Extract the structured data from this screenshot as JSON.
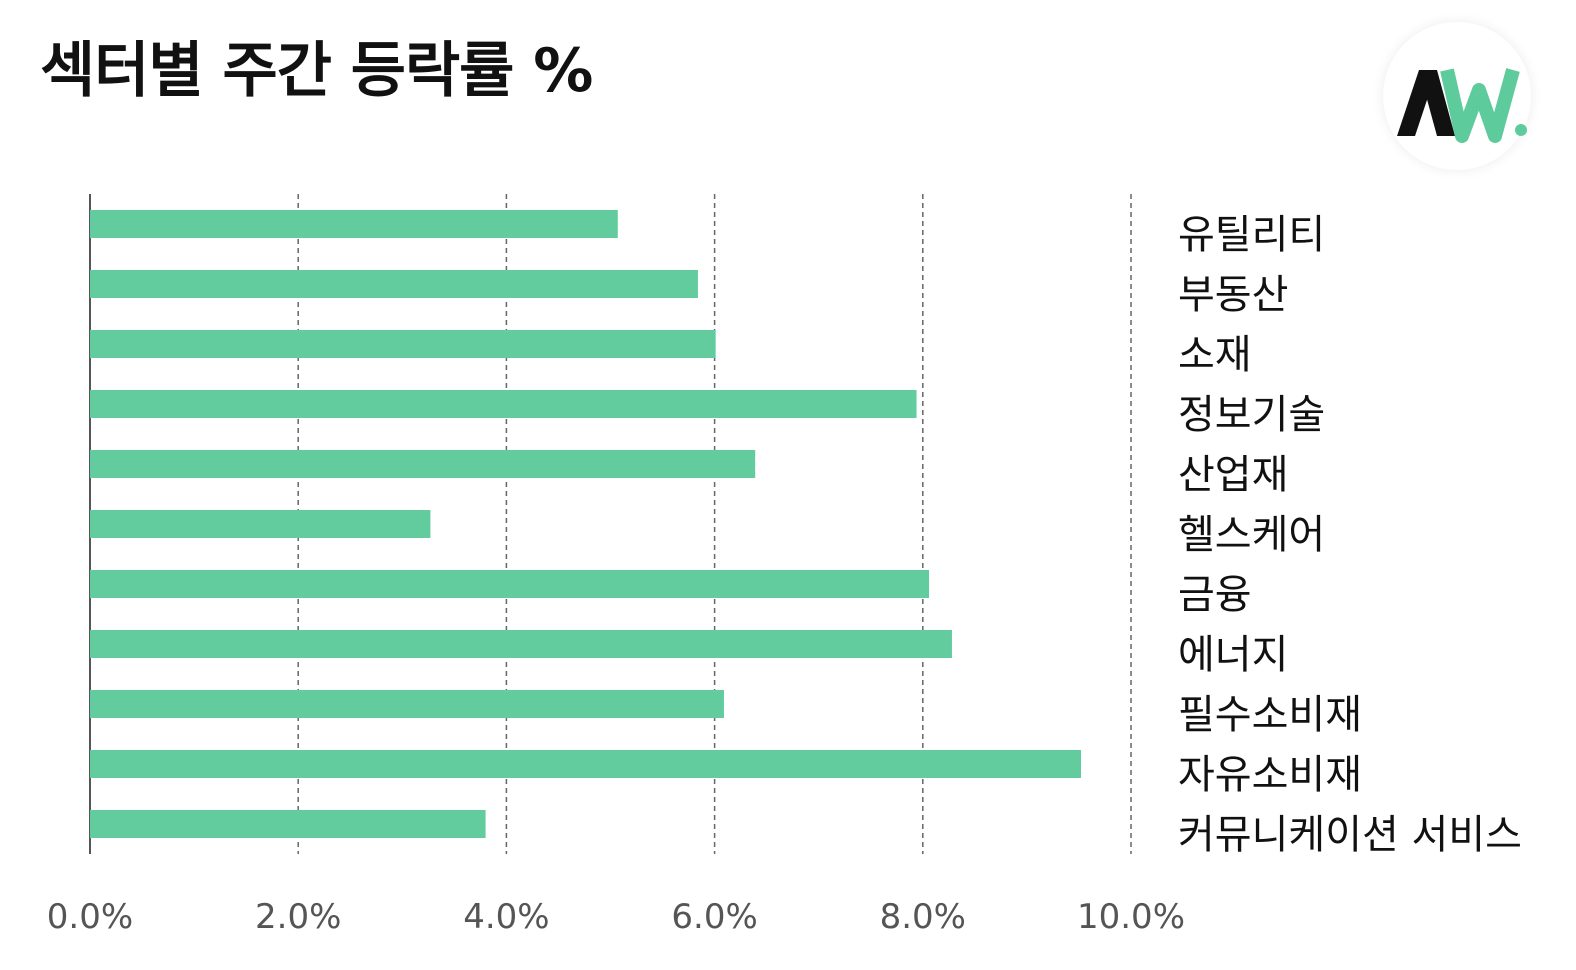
{
  "header": {
    "title": "섹터별 주간 등락률 %"
  },
  "logo": {
    "text": "AW.",
    "colors": {
      "dark": "#111111",
      "accent": "#5ecb9c"
    }
  },
  "colors": {
    "bar": "#62cc9e",
    "grid": "#666666",
    "axis": "#555555",
    "tick_text": "#555555"
  },
  "chart_data": {
    "type": "bar",
    "orientation": "horizontal",
    "title": "섹터별 주간 등락률 %",
    "xlabel": "",
    "ylabel": "",
    "categories": [
      "유틸리티",
      "부동산",
      "소재",
      "정보기술",
      "산업재",
      "헬스케어",
      "금융",
      "에너지",
      "필수소비재",
      "자유소비재",
      "커뮤니케이션 서비스"
    ],
    "values": [
      5.07,
      5.84,
      6.01,
      7.94,
      6.39,
      3.27,
      8.06,
      8.28,
      6.09,
      9.52,
      3.8
    ],
    "xlim": [
      0,
      10
    ],
    "xticks": [
      "0.0%",
      "2.0%",
      "4.0%",
      "6.0%",
      "8.0%",
      "10.0%"
    ],
    "grid": "vertical-dashed",
    "category_label_position": "right"
  }
}
